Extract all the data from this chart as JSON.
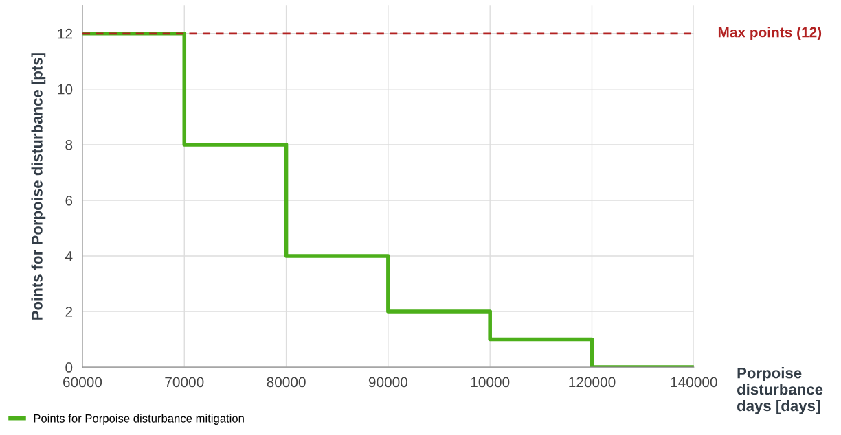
{
  "chart_data": {
    "type": "step",
    "categories": [
      "60000",
      "70000",
      "80000",
      "90000",
      "10000",
      "120000",
      "140000"
    ],
    "series": [
      {
        "name": "Points for Porpoise disturbance mitigation",
        "color": "#4caf1a",
        "values": [
          12,
          8,
          4,
          2,
          1,
          0,
          0
        ]
      }
    ],
    "ylabel": "Points for Porpoise disturbance [pts]",
    "xlabel": "Porpoise\ndisturbance\ndays [days]",
    "ylim": [
      0,
      13
    ],
    "yticks": [
      0,
      2,
      4,
      6,
      8,
      10,
      12
    ],
    "ref_lines": [
      {
        "axis": "y",
        "value": 12,
        "label": "Max points (12)",
        "color": "#b22222",
        "line_style": "dashed"
      }
    ],
    "grid": true,
    "legend": "bottom left"
  }
}
